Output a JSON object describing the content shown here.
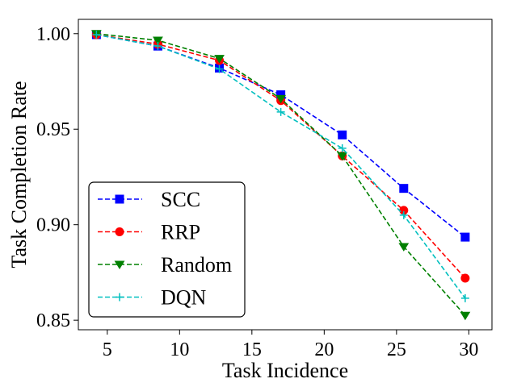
{
  "chart_data": {
    "type": "line",
    "title": "",
    "xlabel": "Task Incidence",
    "ylabel": "Task Completion Rate",
    "xlim": [
      3.0,
      31.6
    ],
    "ylim": [
      0.845,
      1.0075
    ],
    "xticks": [
      5,
      10,
      15,
      20,
      25,
      30
    ],
    "xtick_labels": [
      "5",
      "10",
      "15",
      "20",
      "25",
      "30"
    ],
    "yticks": [
      0.85,
      0.9,
      0.95,
      1.0
    ],
    "ytick_labels": [
      "0.85",
      "0.90",
      "0.95",
      "1.00"
    ],
    "x": [
      4.25,
      8.5,
      12.75,
      17.0,
      21.25,
      25.5,
      29.75
    ],
    "legend_position": "lower-left",
    "series": [
      {
        "name": "SCC",
        "color": "#0000ff",
        "marker": "square",
        "values": [
          0.9995,
          0.9935,
          0.982,
          0.968,
          0.947,
          0.919,
          0.8935
        ]
      },
      {
        "name": "RRP",
        "color": "#ff0000",
        "marker": "circle",
        "values": [
          0.9995,
          0.9945,
          0.986,
          0.965,
          0.936,
          0.9075,
          0.872
        ]
      },
      {
        "name": "Random",
        "color": "#008000",
        "marker": "triangle-down",
        "values": [
          1.0,
          0.9965,
          0.987,
          0.966,
          0.936,
          0.8885,
          0.8525
        ]
      },
      {
        "name": "DQN",
        "color": "#00bfbf",
        "marker": "plus",
        "values": [
          0.9995,
          0.9935,
          0.9815,
          0.959,
          0.94,
          0.905,
          0.8615
        ]
      }
    ]
  }
}
